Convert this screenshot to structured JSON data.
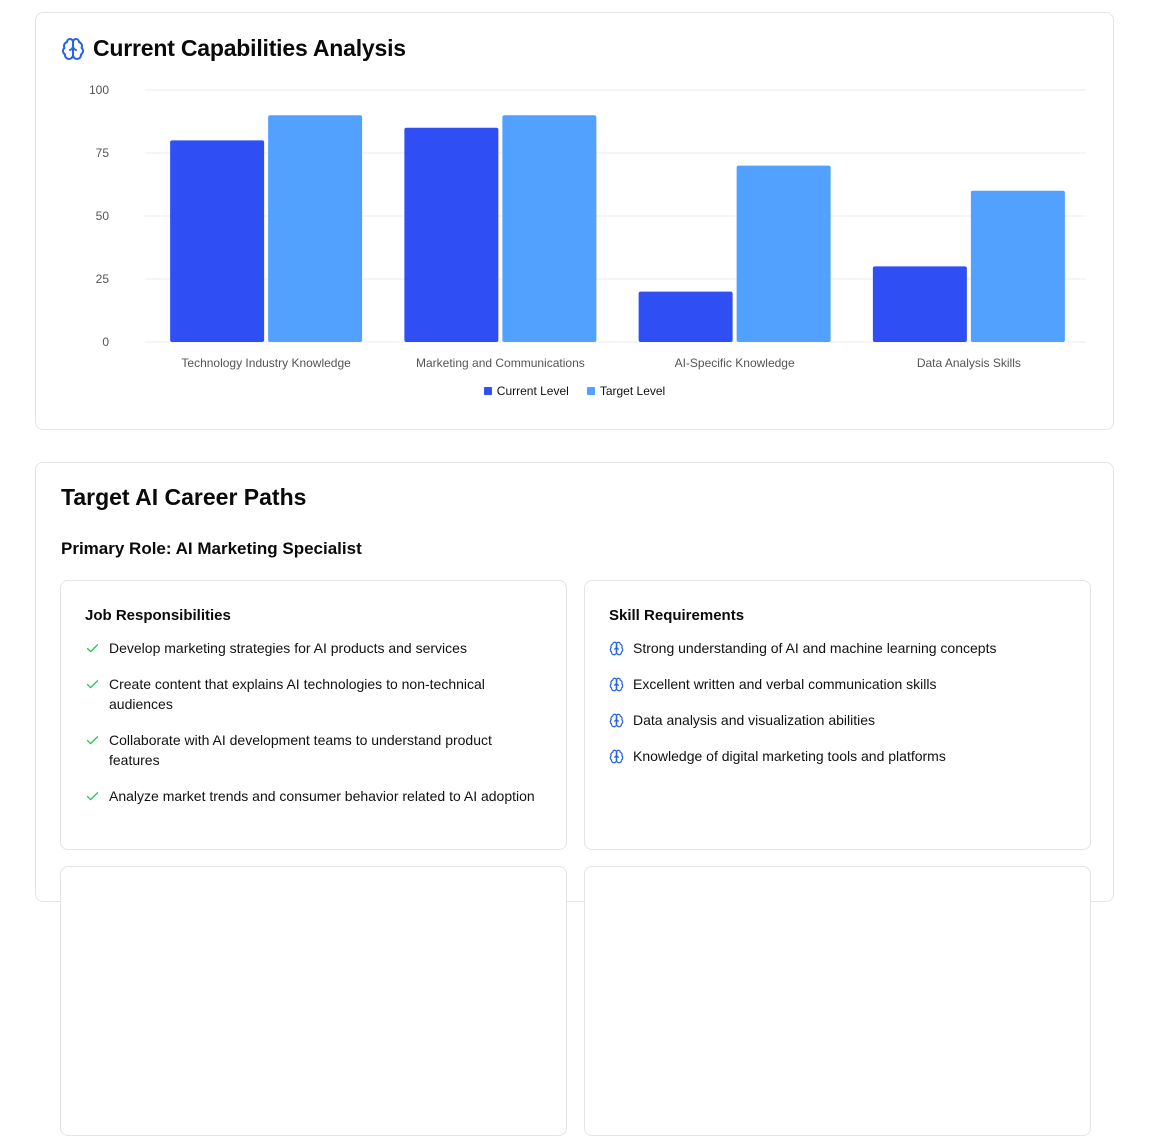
{
  "capabilities": {
    "title": "Current Capabilities Analysis",
    "title_icon": "brain-icon",
    "chart_data": {
      "type": "bar",
      "categories": [
        "Technology Industry Knowledge",
        "Marketing and Communications",
        "AI-Specific Knowledge",
        "Data Analysis Skills"
      ],
      "series": [
        {
          "name": "Current Level",
          "color": "#2f4ff5",
          "values": [
            80,
            85,
            20,
            30
          ]
        },
        {
          "name": "Target Level",
          "color": "#52a0ff",
          "values": [
            90,
            90,
            70,
            60
          ]
        }
      ],
      "yticks": [
        0,
        25,
        50,
        75,
        100
      ],
      "ylim": [
        0,
        100
      ],
      "grid": true,
      "legend_position": "bottom-center"
    }
  },
  "career": {
    "title": "Target AI Career Paths",
    "primary_role": "Primary Role: AI Marketing Specialist",
    "responsibilities": {
      "title": "Job Responsibilities",
      "icon": "check-icon",
      "icon_color": "#22c55e",
      "items": [
        "Develop marketing strategies for AI products and services",
        "Create content that explains AI technologies to non-technical audiences",
        "Collaborate with AI development teams to understand product features",
        "Analyze market trends and consumer behavior related to AI adoption"
      ]
    },
    "skills": {
      "title": "Skill Requirements",
      "icon": "brain-icon",
      "icon_color": "#2563eb",
      "items": [
        "Strong understanding of AI and machine learning concepts",
        "Excellent written and verbal communication skills",
        "Data analysis and visualization abilities",
        "Knowledge of digital marketing tools and platforms"
      ]
    }
  }
}
